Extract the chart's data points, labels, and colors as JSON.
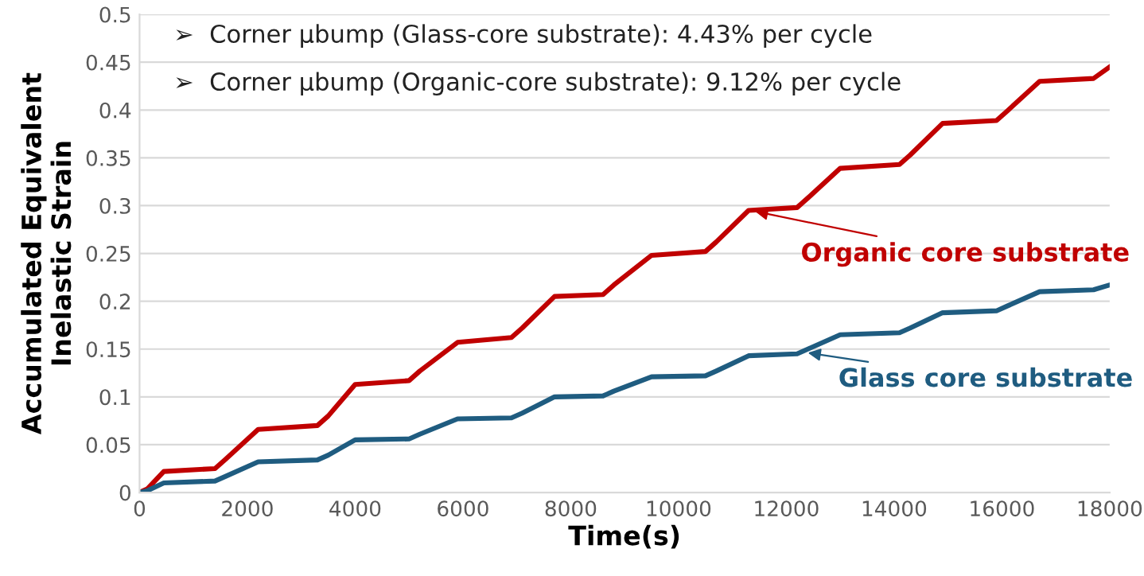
{
  "chart_data": {
    "type": "line",
    "xlabel": "Time(s)",
    "ylabel": "Accumulated Equivalent\nInelastic Strain",
    "xlim": [
      0,
      18000
    ],
    "xticks": [
      0,
      2000,
      4000,
      6000,
      8000,
      10000,
      12000,
      14000,
      16000,
      18000
    ],
    "ylim": [
      0,
      0.5
    ],
    "yticks": [
      0,
      0.05,
      0.1,
      0.15,
      0.2,
      0.25,
      0.3,
      0.35,
      0.4,
      0.45,
      0.5
    ],
    "grid": "y",
    "marker": "none",
    "line_style": "solid",
    "x": [
      0,
      150,
      450,
      1400,
      1600,
      2200,
      3300,
      3500,
      4000,
      5000,
      5200,
      5900,
      6900,
      7100,
      7700,
      8600,
      8800,
      9500,
      10500,
      10700,
      11300,
      12200,
      12400,
      13000,
      14100,
      14300,
      14900,
      15900,
      16100,
      16700,
      17700,
      18000
    ],
    "series": [
      {
        "color": "#c00000",
        "values": [
          0,
          0.004,
          0.022,
          0.025,
          0.035,
          0.066,
          0.07,
          0.08,
          0.113,
          0.117,
          0.127,
          0.157,
          0.162,
          0.172,
          0.205,
          0.207,
          0.217,
          0.248,
          0.252,
          0.262,
          0.295,
          0.298,
          0.308,
          0.339,
          0.343,
          0.353,
          0.386,
          0.389,
          0.399,
          0.43,
          0.433,
          0.445
        ]
      },
      {
        "color": "#1f5c80",
        "values": [
          0,
          0.002,
          0.01,
          0.012,
          0.017,
          0.032,
          0.034,
          0.039,
          0.055,
          0.056,
          0.061,
          0.077,
          0.078,
          0.083,
          0.1,
          0.101,
          0.106,
          0.121,
          0.122,
          0.127,
          0.143,
          0.145,
          0.15,
          0.165,
          0.167,
          0.172,
          0.188,
          0.19,
          0.195,
          0.21,
          0.212,
          0.217
        ]
      }
    ],
    "annotations": [
      "➢  Corner µbump (Glass-core substrate): 4.43% per cycle",
      "➢  Corner µbump (Organic-core substrate): 9.12% per cycle",
      {
        "text": "Organic core substrate",
        "x": 11420,
        "y": 0.294
      },
      {
        "text": "Glass core substrate",
        "x": 12400,
        "y": 0.146
      }
    ]
  }
}
